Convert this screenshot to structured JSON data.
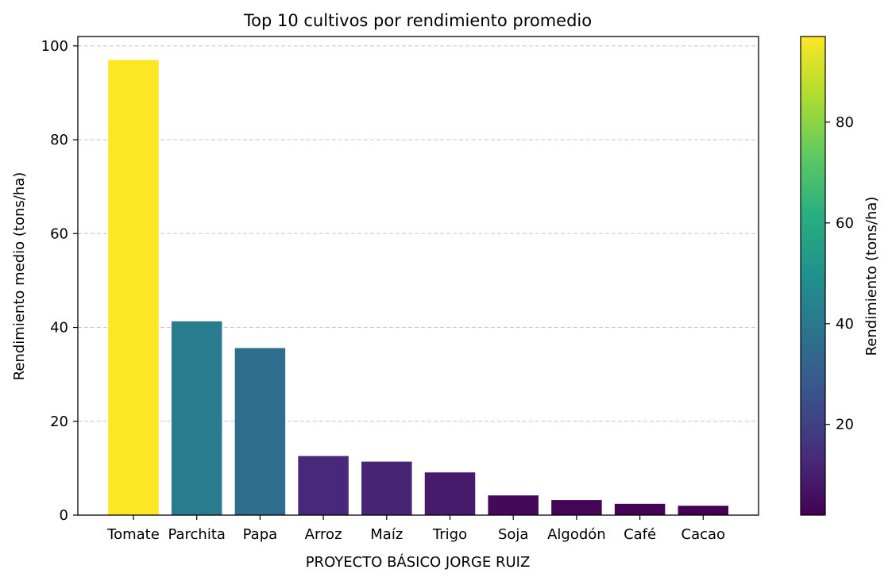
{
  "chart_data": {
    "type": "bar",
    "title": "Top 10 cultivos por rendimiento promedio",
    "xlabel": "PROYECTO BÁSICO JORGE RUIZ",
    "ylabel": "Rendimiento medio (tons/ha)",
    "categories": [
      "Tomate",
      "Parchita",
      "Papa",
      "Arroz",
      "Maíz",
      "Trigo",
      "Soja",
      "Algodón",
      "Café",
      "Cacao"
    ],
    "values": [
      97.0,
      41.3,
      35.6,
      12.6,
      11.4,
      9.1,
      4.2,
      3.2,
      2.4,
      2.0
    ],
    "ylim": [
      0,
      102
    ],
    "yticks": [
      0,
      20,
      40,
      60,
      80,
      100
    ],
    "grid": "horizontal dashed",
    "colormap": "viridis",
    "colorbar": {
      "label": "Rendimiento (tons/ha)",
      "range": [
        2.0,
        97.0
      ],
      "ticks": [
        20,
        40,
        60,
        80
      ]
    }
  }
}
